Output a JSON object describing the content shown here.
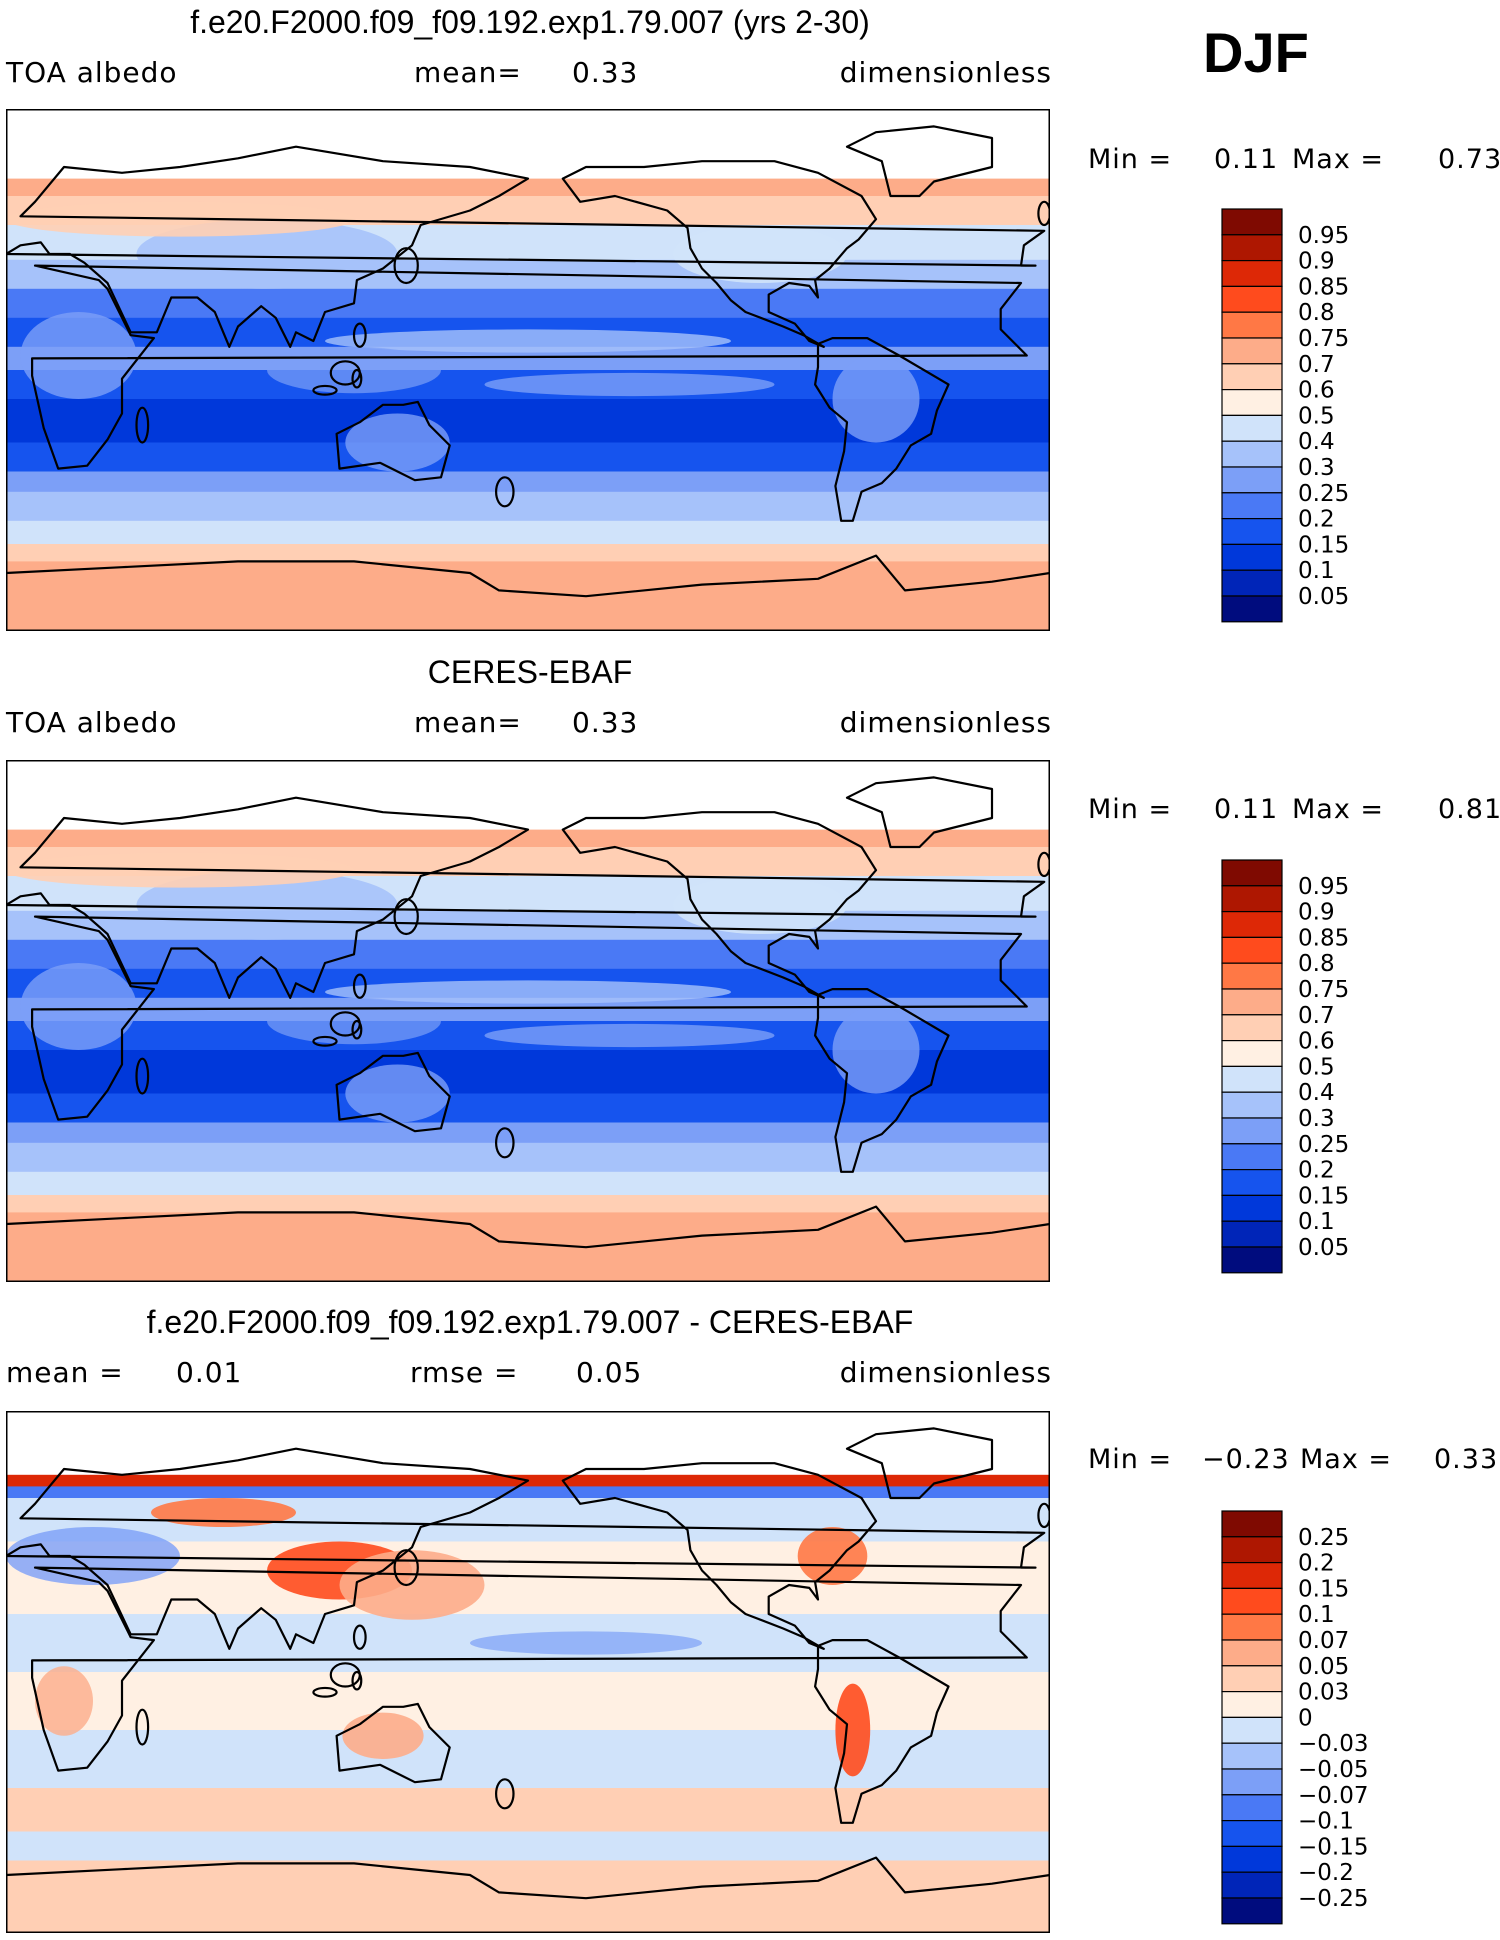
{
  "season": "DJF",
  "colors": {
    "abs_levels": [
      "#000c7e",
      "#0025b8",
      "#0038da",
      "#1654ee",
      "#4a79f5",
      "#7c9ff7",
      "#a6c2fa",
      "#d0e3fa",
      "#fff0e3",
      "#ffcfb4",
      "#fdac89",
      "#ff7845",
      "#ff4b1d",
      "#dd2806",
      "#ae1701",
      "#7f0a01"
    ],
    "diff_levels": [
      "#000c7e",
      "#0025b8",
      "#0038da",
      "#1654ee",
      "#4a79f5",
      "#7c9ff7",
      "#a6c2fa",
      "#d0e3fa",
      "#fff0e3",
      "#ffcfb4",
      "#fdac89",
      "#ff7845",
      "#ff4b1d",
      "#dd2806",
      "#ae1701",
      "#7f0a01"
    ]
  },
  "panels": [
    {
      "title": "f.e20.F2000.f09_f09.192.exp1.79.007 (yrs 2-30)",
      "left_label": "TOA albedo",
      "mid_label": "mean=",
      "mid_value": "0.33",
      "right_label": "dimensionless",
      "min_label": "Min =",
      "min_value": "0.11",
      "max_label": "Max =",
      "max_value": "0.73",
      "colorbar_labels": [
        "0.95",
        "0.9",
        "0.85",
        "0.8",
        "0.75",
        "0.7",
        "0.6",
        "0.5",
        "0.4",
        "0.3",
        "0.25",
        "0.2",
        "0.15",
        "0.1",
        "0.05"
      ]
    },
    {
      "title": "CERES-EBAF",
      "left_label": "TOA albedo",
      "mid_label": "mean=",
      "mid_value": "0.33",
      "right_label": "dimensionless",
      "min_label": "Min =",
      "min_value": "0.11",
      "max_label": "Max =",
      "max_value": "0.81",
      "colorbar_labels": [
        "0.95",
        "0.9",
        "0.85",
        "0.8",
        "0.75",
        "0.7",
        "0.6",
        "0.5",
        "0.4",
        "0.3",
        "0.25",
        "0.2",
        "0.15",
        "0.1",
        "0.05"
      ]
    },
    {
      "title": "f.e20.F2000.f09_f09.192.exp1.79.007 - CERES-EBAF",
      "left_label": "mean =",
      "left_value": "0.01",
      "mid_label": "rmse =",
      "mid_value": "0.05",
      "right_label": "dimensionless",
      "min_label": "Min =",
      "min_value": "−0.23",
      "max_label": "Max =",
      "max_value": "0.33",
      "colorbar_labels": [
        "0.25",
        "0.2",
        "0.15",
        "0.1",
        "0.07",
        "0.05",
        "0.03",
        "0",
        "−0.03",
        "−0.05",
        "−0.07",
        "−0.1",
        "−0.15",
        "−0.2",
        "−0.25"
      ]
    }
  ]
}
